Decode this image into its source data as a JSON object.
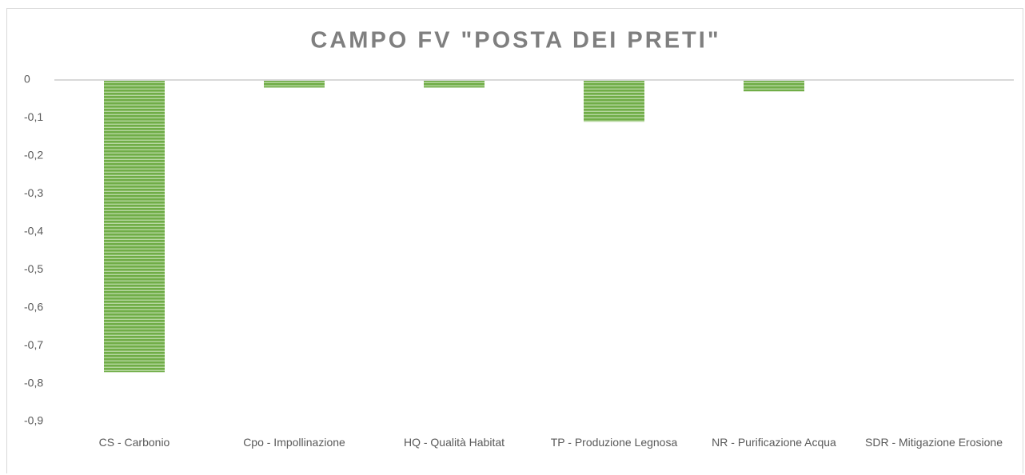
{
  "chart_data": {
    "type": "bar",
    "title": "CAMPO FV \"POSTA DEI PRETI\"",
    "categories": [
      "CS - Carbonio",
      "Cpo - Impollinazione",
      "HQ - Qualità Habitat",
      "TP - Produzione Legnosa",
      "NR - Purificazione Acqua",
      "SDR - Mitigazione Erosione"
    ],
    "values": [
      -0.77,
      -0.02,
      -0.02,
      -0.11,
      -0.03,
      0
    ],
    "color": "#70ad47",
    "ylim": [
      -0.9,
      0
    ],
    "yticks": [
      0,
      {
        "value": -0.1,
        "label": "-0,1"
      },
      {
        "value": -0.2,
        "label": "-0,2"
      },
      {
        "value": -0.3,
        "label": "-0,3"
      },
      {
        "value": -0.4,
        "label": "-0,4"
      },
      {
        "value": -0.5,
        "label": "-0,5"
      },
      {
        "value": -0.6,
        "label": "-0,6"
      },
      {
        "value": -0.7,
        "label": "-0,7"
      },
      {
        "value": -0.8,
        "label": "-0,8"
      },
      {
        "value": -0.9,
        "label": "-0,9"
      }
    ],
    "grid": false
  }
}
